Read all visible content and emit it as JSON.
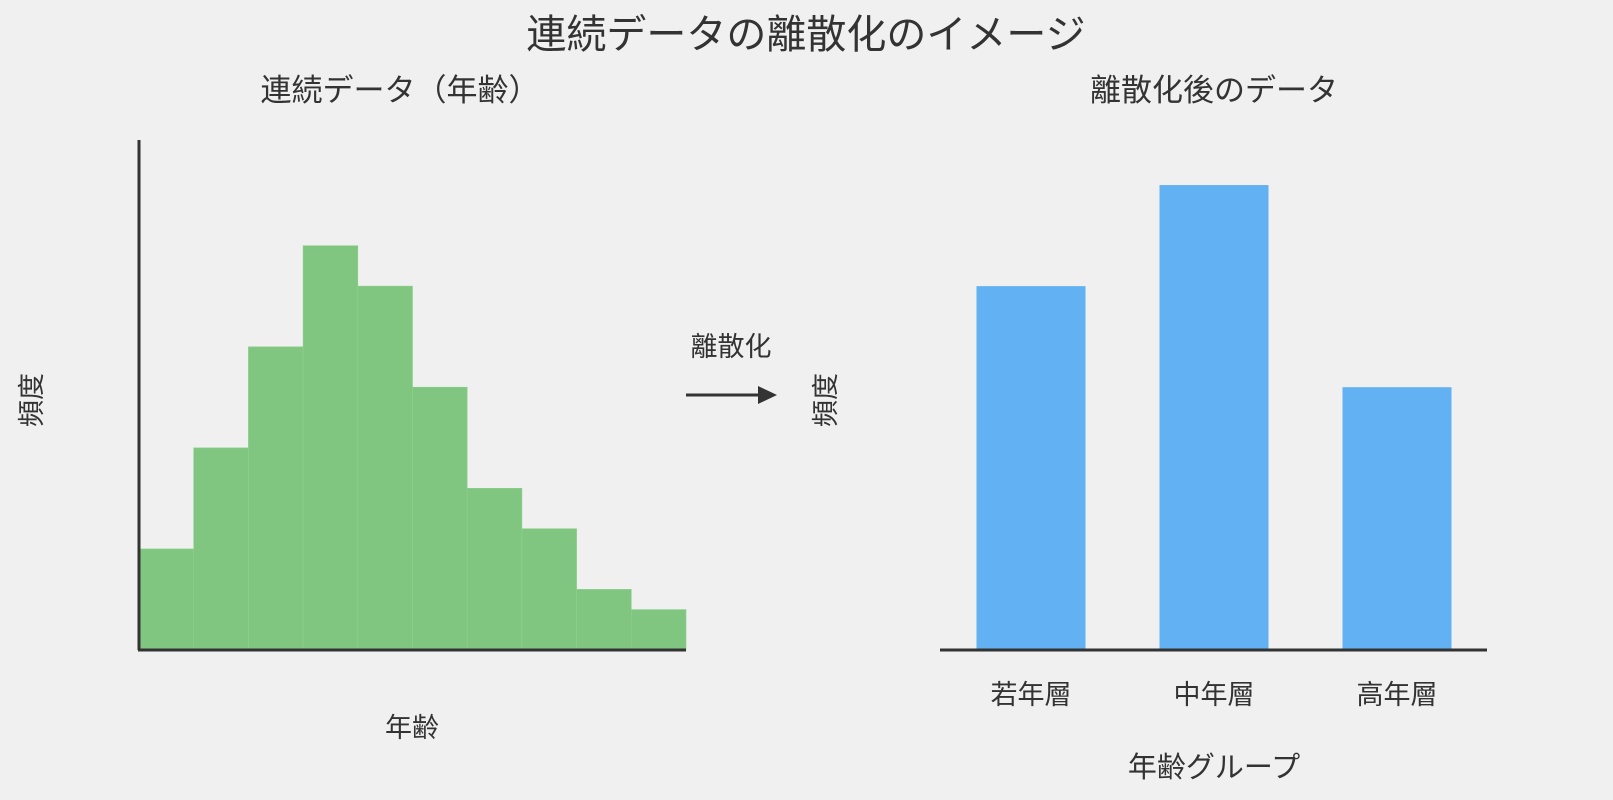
{
  "title": "連続データの離散化のイメージ",
  "arrow_label": "離散化",
  "colors": {
    "hist": "#80c680",
    "bar": "#62b1f2",
    "axis": "#333333",
    "background": "#f0f0f0"
  },
  "chart_data": [
    {
      "type": "bar",
      "title": "連続データ（年齢）",
      "xlabel": "年齢",
      "ylabel": "頻度",
      "values": [
        5,
        10,
        15,
        20,
        18,
        13,
        8,
        6,
        3,
        2
      ],
      "ylim": [
        0,
        28
      ],
      "legend": "none",
      "grid": false
    },
    {
      "type": "bar",
      "title": "離散化後のデータ",
      "xlabel": "年齢グループ",
      "ylabel": "頻度",
      "categories": [
        "若年層",
        "中年層",
        "高年層"
      ],
      "values": [
        18,
        23,
        13
      ],
      "ylim": [
        0,
        28
      ],
      "legend": "none",
      "grid": false
    }
  ]
}
